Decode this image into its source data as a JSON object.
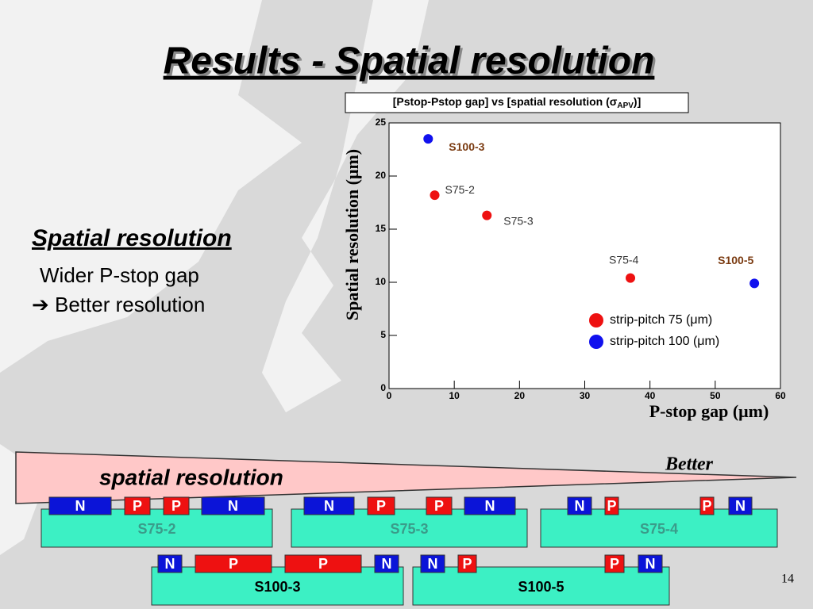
{
  "slide": {
    "title": "Results - Spatial resolution",
    "heading": "Spatial resolution",
    "lines": [
      "Wider P-stop gap",
      "➔ Better resolution"
    ],
    "page_number": "14"
  },
  "chart_data": {
    "type": "scatter",
    "title": [
      "[Pstop-Pstop gap] vs [spatial resolution (σ",
      "APV",
      ")]"
    ],
    "xlabel": "P-stop gap (μm)",
    "ylabel": "Spatial resolution (μm)",
    "xlim": [
      0,
      60
    ],
    "ylim": [
      0,
      25
    ],
    "xticks": [
      0,
      10,
      20,
      30,
      40,
      50,
      60
    ],
    "yticks": [
      0,
      5,
      10,
      15,
      20,
      25
    ],
    "legend": "lower right",
    "series": [
      {
        "name": "strip-pitch 75 (μm)",
        "color": "#ee1111",
        "label_color": "#333333",
        "x": [
          7,
          15,
          37
        ],
        "values": [
          18.2,
          16.3,
          10.4
        ],
        "point_labels": [
          "S75-2",
          "S75-3",
          "S75-4"
        ]
      },
      {
        "name": "strip-pitch 100 (μm)",
        "color": "#1111ee",
        "label_color": "#7a3a10",
        "x": [
          6,
          56
        ],
        "values": [
          23.5,
          9.9
        ],
        "point_labels": [
          "S100-3",
          "S100-5"
        ]
      }
    ]
  },
  "diagram": {
    "label": "spatial resolution",
    "arrow_label": "Better",
    "strip_colors": {
      "N": "#0b14d8",
      "P": "#ee1111"
    },
    "sensors": [
      {
        "name": "S75-2",
        "strips": [
          "N",
          "P",
          "P",
          "N"
        ]
      },
      {
        "name": "S75-3",
        "strips": [
          "N",
          "P",
          "P",
          "N"
        ]
      },
      {
        "name": "S75-4",
        "strips": [
          "N",
          "P",
          "P",
          "N"
        ]
      },
      {
        "name": "S100-3",
        "strips": [
          "N",
          "P",
          "P",
          "N"
        ]
      },
      {
        "name": "S100-5",
        "strips": [
          "N",
          "P",
          "P",
          "N"
        ]
      }
    ]
  }
}
